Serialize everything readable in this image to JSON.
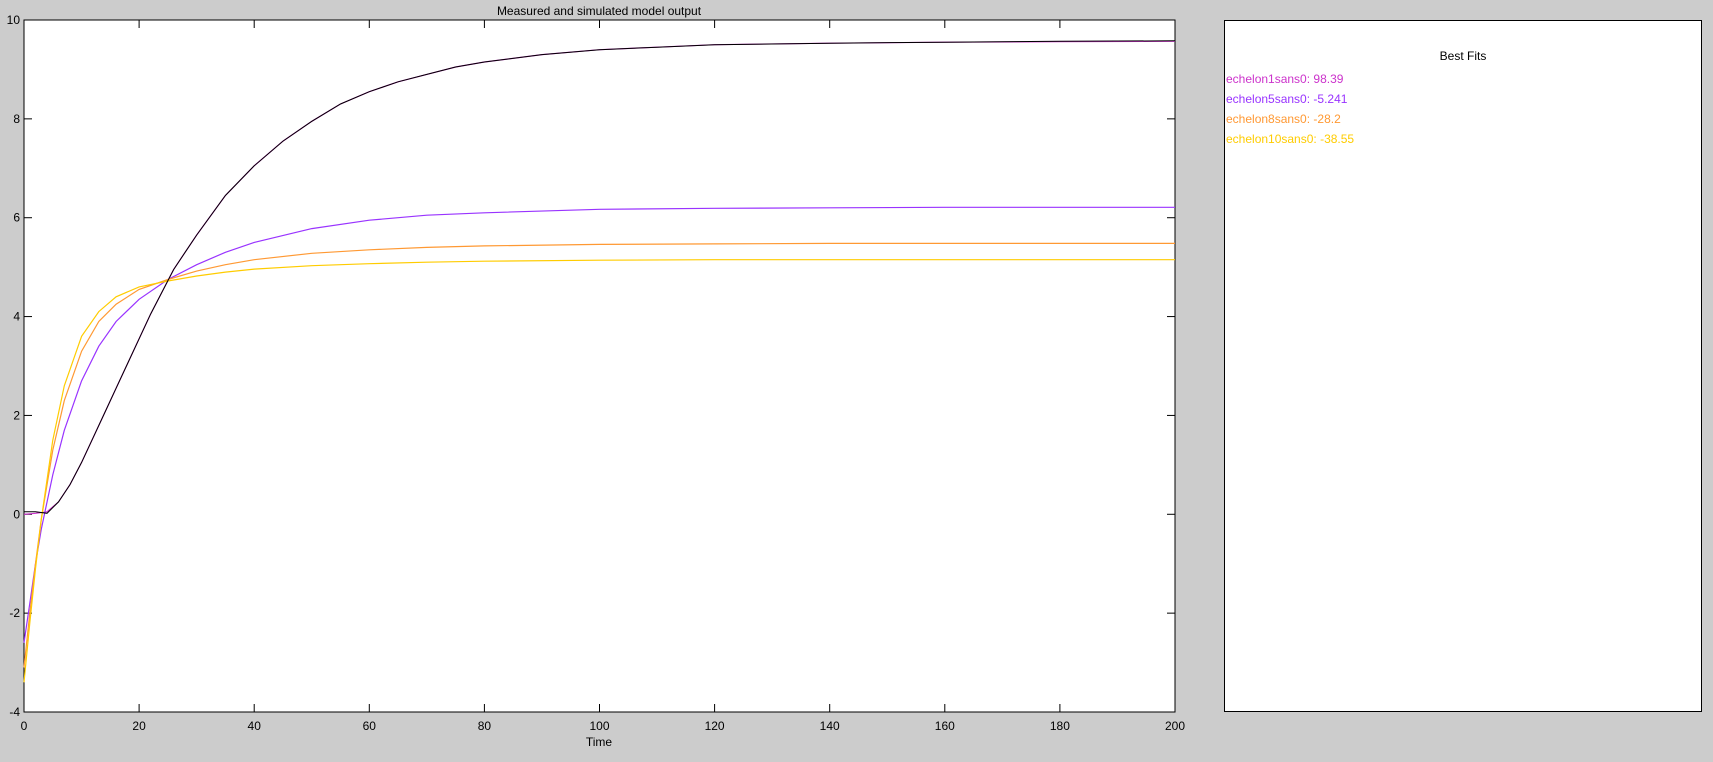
{
  "chart_data": {
    "type": "line",
    "title": "Measured and simulated model output",
    "xlabel": "Time",
    "ylabel": "",
    "xlim": [
      0,
      200
    ],
    "ylim": [
      -4,
      10
    ],
    "xticks": [
      0,
      20,
      40,
      60,
      80,
      100,
      120,
      140,
      160,
      180,
      200
    ],
    "yticks": [
      -4,
      -2,
      0,
      2,
      4,
      6,
      8,
      10
    ],
    "grid": false,
    "series": [
      {
        "color": "#000000",
        "points": [
          [
            0,
            0.05
          ],
          [
            2,
            0.05
          ],
          [
            4,
            0.02
          ],
          [
            6,
            0.25
          ],
          [
            8,
            0.6
          ],
          [
            10,
            1.05
          ],
          [
            12,
            1.55
          ],
          [
            14,
            2.05
          ],
          [
            16,
            2.55
          ],
          [
            18,
            3.05
          ],
          [
            20,
            3.55
          ],
          [
            22,
            4.05
          ],
          [
            24,
            4.5
          ],
          [
            26,
            4.95
          ],
          [
            28,
            5.3
          ],
          [
            30,
            5.65
          ],
          [
            35,
            6.45
          ],
          [
            40,
            7.05
          ],
          [
            45,
            7.55
          ],
          [
            50,
            7.95
          ],
          [
            55,
            8.3
          ],
          [
            60,
            8.55
          ],
          [
            65,
            8.75
          ],
          [
            70,
            8.9
          ],
          [
            75,
            9.05
          ],
          [
            80,
            9.15
          ],
          [
            90,
            9.3
          ],
          [
            100,
            9.4
          ],
          [
            110,
            9.45
          ],
          [
            120,
            9.5
          ],
          [
            140,
            9.53
          ],
          [
            160,
            9.55
          ],
          [
            180,
            9.57
          ],
          [
            200,
            9.58
          ]
        ]
      },
      {
        "name": "echelon1sans0",
        "color": "#cc33cc",
        "points": [
          [
            0,
            0.0
          ],
          [
            2,
            0.02
          ],
          [
            4,
            0.05
          ],
          [
            6,
            0.25
          ],
          [
            8,
            0.6
          ],
          [
            10,
            1.05
          ],
          [
            12,
            1.55
          ],
          [
            14,
            2.05
          ],
          [
            16,
            2.55
          ],
          [
            18,
            3.05
          ],
          [
            20,
            3.55
          ],
          [
            22,
            4.05
          ],
          [
            24,
            4.5
          ],
          [
            26,
            4.95
          ],
          [
            28,
            5.3
          ],
          [
            30,
            5.65
          ],
          [
            35,
            6.45
          ],
          [
            40,
            7.05
          ],
          [
            45,
            7.55
          ],
          [
            50,
            7.95
          ],
          [
            55,
            8.3
          ],
          [
            60,
            8.55
          ],
          [
            65,
            8.75
          ],
          [
            70,
            8.9
          ],
          [
            75,
            9.05
          ],
          [
            80,
            9.15
          ],
          [
            90,
            9.3
          ],
          [
            100,
            9.4
          ],
          [
            110,
            9.45
          ],
          [
            120,
            9.5
          ],
          [
            140,
            9.53
          ],
          [
            160,
            9.55
          ],
          [
            180,
            9.56
          ],
          [
            200,
            9.57
          ]
        ]
      },
      {
        "name": "echelon5sans0",
        "color": "#9933ff",
        "points": [
          [
            0,
            -2.6
          ],
          [
            1,
            -1.8
          ],
          [
            2,
            -1.0
          ],
          [
            3,
            -0.3
          ],
          [
            5,
            0.8
          ],
          [
            7,
            1.7
          ],
          [
            10,
            2.7
          ],
          [
            13,
            3.4
          ],
          [
            16,
            3.9
          ],
          [
            20,
            4.35
          ],
          [
            25,
            4.75
          ],
          [
            30,
            5.05
          ],
          [
            35,
            5.3
          ],
          [
            40,
            5.5
          ],
          [
            50,
            5.78
          ],
          [
            60,
            5.95
          ],
          [
            70,
            6.05
          ],
          [
            80,
            6.1
          ],
          [
            100,
            6.17
          ],
          [
            120,
            6.19
          ],
          [
            140,
            6.2
          ],
          [
            160,
            6.21
          ],
          [
            180,
            6.21
          ],
          [
            200,
            6.21
          ]
        ]
      },
      {
        "name": "echelon8sans0",
        "color": "#ff9933",
        "points": [
          [
            0,
            -3.1
          ],
          [
            1,
            -2.0
          ],
          [
            2,
            -1.0
          ],
          [
            3,
            -0.1
          ],
          [
            5,
            1.3
          ],
          [
            7,
            2.3
          ],
          [
            10,
            3.3
          ],
          [
            13,
            3.9
          ],
          [
            16,
            4.25
          ],
          [
            20,
            4.55
          ],
          [
            25,
            4.75
          ],
          [
            30,
            4.92
          ],
          [
            35,
            5.05
          ],
          [
            40,
            5.15
          ],
          [
            50,
            5.28
          ],
          [
            60,
            5.35
          ],
          [
            70,
            5.4
          ],
          [
            80,
            5.43
          ],
          [
            100,
            5.46
          ],
          [
            120,
            5.47
          ],
          [
            140,
            5.48
          ],
          [
            160,
            5.48
          ],
          [
            180,
            5.48
          ],
          [
            200,
            5.48
          ]
        ]
      },
      {
        "name": "echelon10sans0",
        "color": "#ffcc00",
        "points": [
          [
            0,
            -3.4
          ],
          [
            1,
            -2.2
          ],
          [
            2,
            -1.1
          ],
          [
            3,
            -0.1
          ],
          [
            5,
            1.5
          ],
          [
            7,
            2.6
          ],
          [
            10,
            3.6
          ],
          [
            13,
            4.1
          ],
          [
            16,
            4.4
          ],
          [
            20,
            4.6
          ],
          [
            25,
            4.72
          ],
          [
            30,
            4.82
          ],
          [
            35,
            4.9
          ],
          [
            40,
            4.96
          ],
          [
            50,
            5.03
          ],
          [
            60,
            5.07
          ],
          [
            70,
            5.1
          ],
          [
            80,
            5.12
          ],
          [
            100,
            5.14
          ],
          [
            120,
            5.15
          ],
          [
            140,
            5.15
          ],
          [
            160,
            5.15
          ],
          [
            180,
            5.15
          ],
          [
            200,
            5.15
          ]
        ]
      }
    ]
  },
  "best_fits": {
    "title": "Best Fits",
    "entries": [
      {
        "label": "echelon1sans0: 98.39",
        "color": "#cc33cc"
      },
      {
        "label": "echelon5sans0: -5.241",
        "color": "#9933ff"
      },
      {
        "label": "echelon8sans0: -28.2",
        "color": "#ff9933"
      },
      {
        "label": "echelon10sans0: -38.55",
        "color": "#ffcc00"
      }
    ]
  }
}
